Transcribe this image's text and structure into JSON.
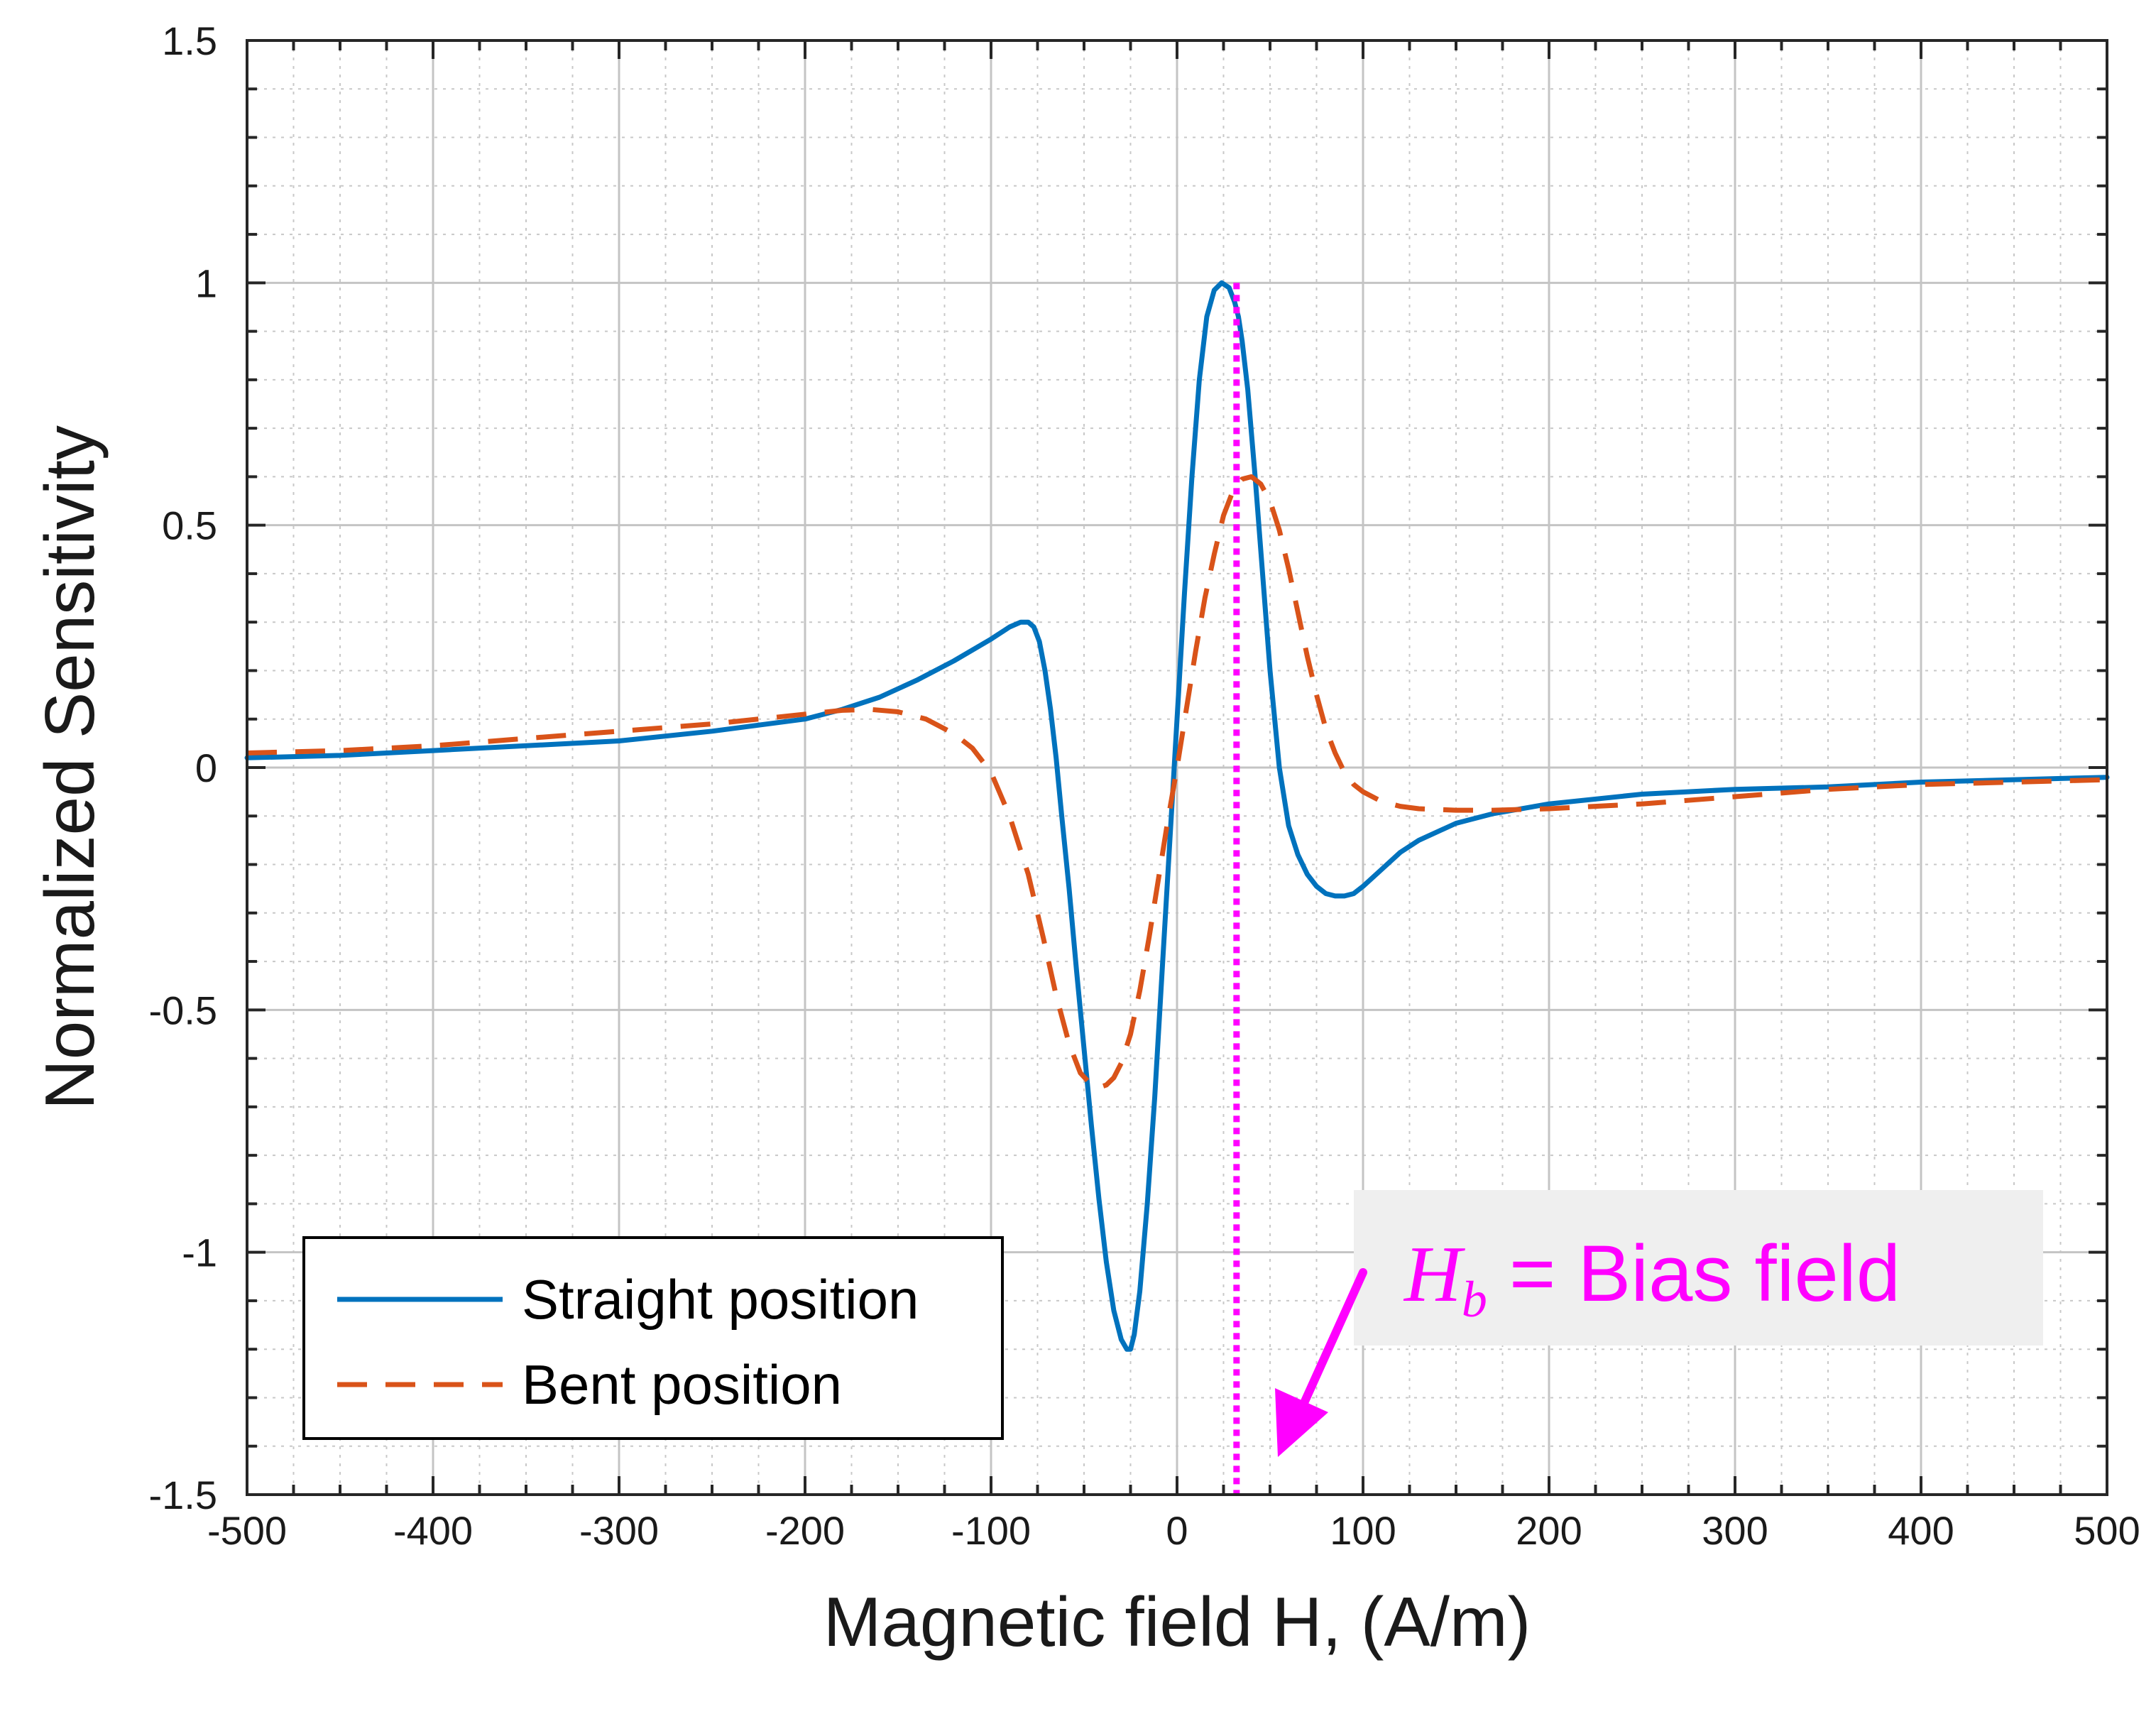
{
  "chart_data": {
    "type": "line",
    "title": "",
    "xlabel": "Magnetic field H, (A/m)",
    "ylabel": "Normalized Sensitivity",
    "xlim": [
      -500,
      500
    ],
    "ylim": [
      -1.5,
      1.5
    ],
    "x_ticks": [
      -500,
      -400,
      -300,
      -200,
      -100,
      0,
      100,
      200,
      300,
      400,
      500
    ],
    "x_tick_labels": [
      "-500",
      "-400",
      "-300",
      "-200",
      "-100",
      "0",
      "100",
      "200",
      "300",
      "400",
      "500"
    ],
    "y_ticks": [
      -1.5,
      -1,
      -0.5,
      0,
      0.5,
      1,
      1.5
    ],
    "y_tick_labels": [
      "-1.5",
      "-1",
      "-0.5",
      "0",
      "0.5",
      "1",
      "1.5"
    ],
    "grid": true,
    "minor_grid": true,
    "legend_position": "bottom-left",
    "series": [
      {
        "name": "Straight position",
        "style": "solid",
        "color": "#0072BD",
        "x": [
          -500,
          -450,
          -400,
          -350,
          -300,
          -250,
          -200,
          -180,
          -160,
          -140,
          -120,
          -100,
          -90,
          -84,
          -80,
          -77,
          -74,
          -71,
          -68,
          -65,
          -62,
          -58,
          -54,
          -50,
          -46,
          -42,
          -38,
          -34,
          -30,
          -27,
          -25,
          -23,
          -20,
          -16,
          -12,
          -8,
          -4,
          0,
          4,
          8,
          12,
          16,
          20,
          24,
          28,
          31,
          33,
          35,
          38,
          42,
          46,
          50,
          55,
          60,
          65,
          70,
          75,
          80,
          85,
          90,
          95,
          100,
          110,
          120,
          130,
          150,
          170,
          200,
          250,
          300,
          350,
          400,
          450,
          500
        ],
        "y": [
          0.02,
          0.025,
          0.035,
          0.045,
          0.055,
          0.075,
          0.1,
          0.12,
          0.145,
          0.18,
          0.22,
          0.265,
          0.29,
          0.3,
          0.3,
          0.29,
          0.26,
          0.2,
          0.12,
          0.02,
          -0.1,
          -0.25,
          -0.42,
          -0.58,
          -0.74,
          -0.89,
          -1.02,
          -1.12,
          -1.18,
          -1.2,
          -1.2,
          -1.17,
          -1.08,
          -0.9,
          -0.68,
          -0.42,
          -0.16,
          0.1,
          0.36,
          0.6,
          0.8,
          0.93,
          0.985,
          1.0,
          0.99,
          0.96,
          0.93,
          0.88,
          0.78,
          0.6,
          0.4,
          0.2,
          0.0,
          -0.12,
          -0.18,
          -0.22,
          -0.245,
          -0.26,
          -0.265,
          -0.265,
          -0.26,
          -0.245,
          -0.21,
          -0.175,
          -0.15,
          -0.115,
          -0.095,
          -0.075,
          -0.055,
          -0.045,
          -0.04,
          -0.03,
          -0.025,
          -0.02
        ]
      },
      {
        "name": "Bent position",
        "style": "dashed",
        "color": "#D95319",
        "x": [
          -500,
          -450,
          -400,
          -350,
          -300,
          -250,
          -200,
          -180,
          -165,
          -150,
          -135,
          -120,
          -110,
          -100,
          -90,
          -80,
          -72,
          -65,
          -58,
          -52,
          -46,
          -42,
          -38,
          -34,
          -30,
          -25,
          -20,
          -15,
          -10,
          -5,
          0,
          5,
          10,
          15,
          20,
          25,
          30,
          35,
          40,
          45,
          50,
          55,
          60,
          65,
          70,
          75,
          80,
          85,
          90,
          95,
          100,
          110,
          120,
          130,
          150,
          170,
          200,
          250,
          300,
          350,
          400,
          450,
          500
        ],
        "y": [
          0.03,
          0.035,
          0.045,
          0.06,
          0.075,
          0.09,
          0.11,
          0.118,
          0.12,
          0.115,
          0.1,
          0.07,
          0.04,
          -0.01,
          -0.1,
          -0.22,
          -0.35,
          -0.47,
          -0.57,
          -0.63,
          -0.655,
          -0.66,
          -0.655,
          -0.64,
          -0.61,
          -0.55,
          -0.46,
          -0.35,
          -0.23,
          -0.11,
          0.0,
          0.12,
          0.24,
          0.35,
          0.44,
          0.52,
          0.57,
          0.595,
          0.6,
          0.585,
          0.55,
          0.49,
          0.41,
          0.32,
          0.23,
          0.15,
          0.08,
          0.03,
          -0.01,
          -0.035,
          -0.05,
          -0.07,
          -0.08,
          -0.085,
          -0.088,
          -0.088,
          -0.085,
          -0.075,
          -0.06,
          -0.045,
          -0.035,
          -0.03,
          -0.025
        ]
      }
    ],
    "reference_line": {
      "x": 32,
      "style": "dotted",
      "color": "#FF00FF"
    },
    "annotation": {
      "math_symbol": "H",
      "math_subscript": "b",
      "text": " = Bias field",
      "color": "#FF00FF",
      "background": "#EFEFEF",
      "arrow_color": "#FF00FF"
    }
  }
}
